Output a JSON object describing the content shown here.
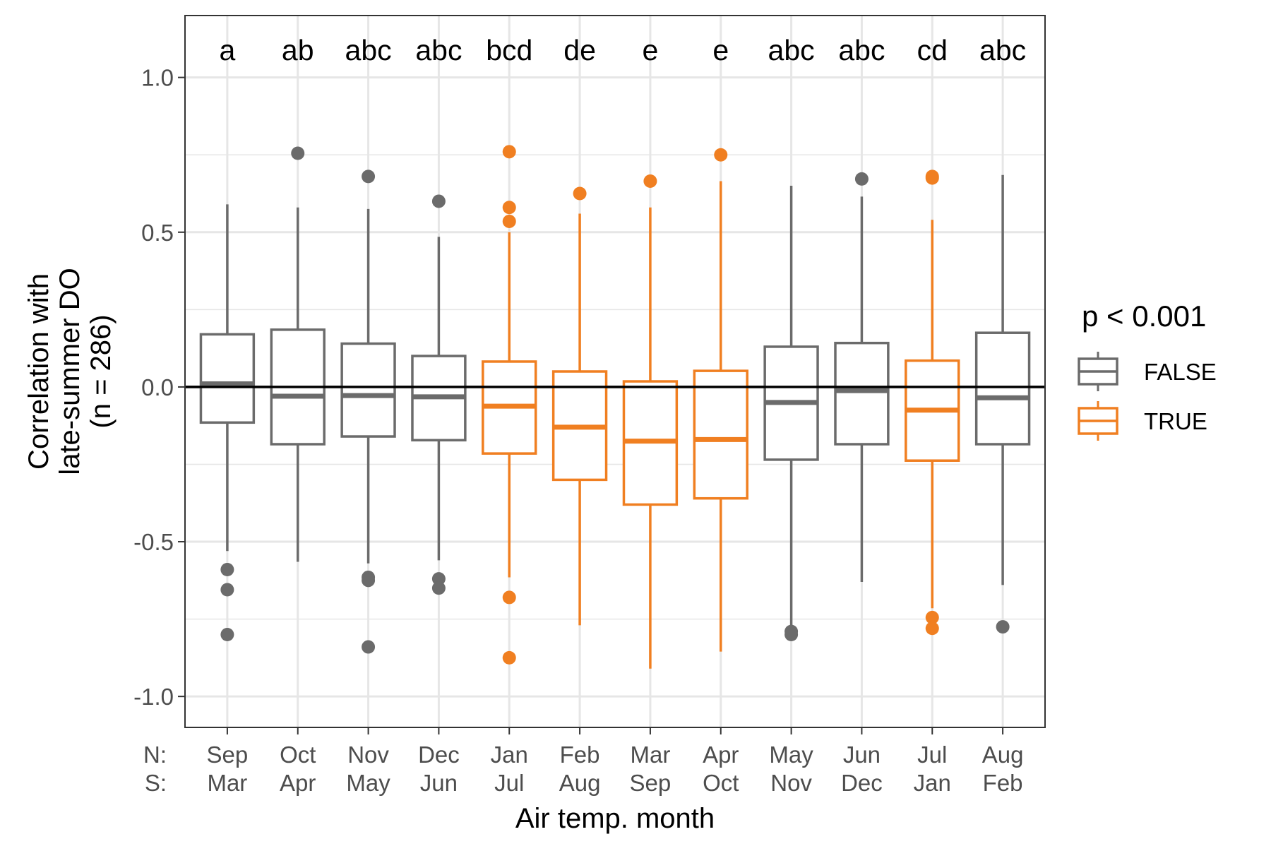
{
  "chart_data": {
    "type": "boxplot",
    "xlabel": "Air temp. month",
    "ylabel": [
      "Correlation with",
      "late-summer DO",
      "(n = 286)"
    ],
    "ylim": [
      -1.1,
      1.2
    ],
    "yticks": [
      -1.0,
      -0.5,
      0.0,
      0.5,
      1.0
    ],
    "ytick_labels": [
      "-1.0",
      "-0.5",
      "0.0",
      "0.5",
      "1.0"
    ],
    "reference_line": 0.0,
    "grid": true,
    "row_labels": [
      "N:",
      "S:"
    ],
    "categories": [
      {
        "north": "Sep",
        "south": "Mar",
        "letter": "a",
        "sig": "FALSE",
        "q1": -0.115,
        "median": 0.01,
        "q3": 0.17,
        "whisker_low": -0.53,
        "whisker_high": 0.59,
        "outliers": [
          -0.59,
          -0.655,
          -0.8
        ]
      },
      {
        "north": "Oct",
        "south": "Apr",
        "letter": "ab",
        "sig": "FALSE",
        "q1": -0.185,
        "median": -0.03,
        "q3": 0.185,
        "whisker_low": -0.565,
        "whisker_high": 0.58,
        "outliers": [
          0.755
        ]
      },
      {
        "north": "Nov",
        "south": "May",
        "letter": "abc",
        "sig": "FALSE",
        "q1": -0.16,
        "median": -0.028,
        "q3": 0.14,
        "whisker_low": -0.57,
        "whisker_high": 0.575,
        "outliers": [
          0.68,
          -0.615,
          -0.625,
          -0.84
        ]
      },
      {
        "north": "Dec",
        "south": "Jun",
        "letter": "abc",
        "sig": "FALSE",
        "q1": -0.172,
        "median": -0.032,
        "q3": 0.1,
        "whisker_low": -0.56,
        "whisker_high": 0.485,
        "outliers": [
          0.6,
          -0.62,
          -0.65
        ]
      },
      {
        "north": "Jan",
        "south": "Jul",
        "letter": "bcd",
        "sig": "TRUE",
        "q1": -0.215,
        "median": -0.062,
        "q3": 0.082,
        "whisker_low": -0.615,
        "whisker_high": 0.5,
        "outliers": [
          0.76,
          0.58,
          0.535,
          -0.68,
          -0.875
        ]
      },
      {
        "north": "Feb",
        "south": "Aug",
        "letter": "de",
        "sig": "TRUE",
        "q1": -0.3,
        "median": -0.13,
        "q3": 0.05,
        "whisker_low": -0.77,
        "whisker_high": 0.56,
        "outliers": [
          0.625
        ]
      },
      {
        "north": "Mar",
        "south": "Sep",
        "letter": "e",
        "sig": "TRUE",
        "q1": -0.38,
        "median": -0.175,
        "q3": 0.018,
        "whisker_low": -0.91,
        "whisker_high": 0.58,
        "outliers": [
          0.665
        ]
      },
      {
        "north": "Apr",
        "south": "Oct",
        "letter": "e",
        "sig": "TRUE",
        "q1": -0.36,
        "median": -0.17,
        "q3": 0.052,
        "whisker_low": -0.855,
        "whisker_high": 0.665,
        "outliers": [
          0.75
        ]
      },
      {
        "north": "May",
        "south": "Nov",
        "letter": "abc",
        "sig": "FALSE",
        "q1": -0.235,
        "median": -0.05,
        "q3": 0.13,
        "whisker_low": -0.79,
        "whisker_high": 0.65,
        "outliers": [
          -0.79,
          -0.8
        ]
      },
      {
        "north": "Jun",
        "south": "Dec",
        "letter": "abc",
        "sig": "FALSE",
        "q1": -0.185,
        "median": -0.012,
        "q3": 0.142,
        "whisker_low": -0.63,
        "whisker_high": 0.615,
        "outliers": [
          0.672
        ]
      },
      {
        "north": "Jul",
        "south": "Jan",
        "letter": "cd",
        "sig": "TRUE",
        "q1": -0.238,
        "median": -0.075,
        "q3": 0.085,
        "whisker_low": -0.715,
        "whisker_high": 0.54,
        "outliers": [
          0.675,
          0.68,
          -0.745,
          -0.78
        ]
      },
      {
        "north": "Aug",
        "south": "Feb",
        "letter": "abc",
        "sig": "FALSE",
        "q1": -0.185,
        "median": -0.035,
        "q3": 0.175,
        "whisker_low": -0.64,
        "whisker_high": 0.685,
        "outliers": [
          -0.775
        ]
      }
    ],
    "legend": {
      "title": "p < 0.001",
      "placement": "right",
      "entries": [
        {
          "label": "FALSE",
          "color": "#6b6b6b"
        },
        {
          "label": "TRUE",
          "color": "#f07f21"
        }
      ]
    },
    "colors": {
      "FALSE": "#6b6b6b",
      "TRUE": "#f07f21",
      "grid": "#e6e6e6",
      "reference": "#000000"
    }
  }
}
